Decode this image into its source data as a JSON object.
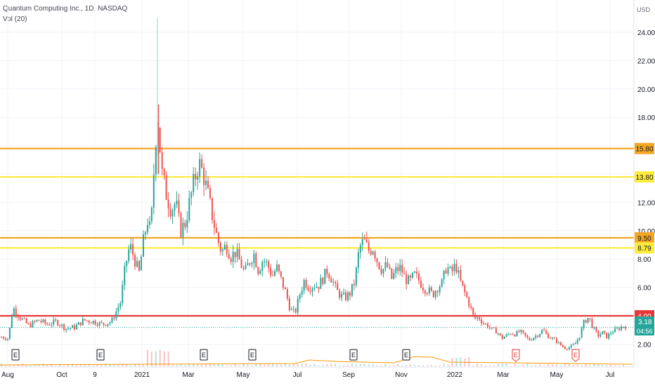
{
  "header": {
    "symbol_title": "Quantum Computing Inc., 1D, NASDAQ",
    "volume_indicator": "Vol (20)"
  },
  "axis": {
    "currency": "USD",
    "y_tick_labels": [
      "24.00",
      "22.00",
      "20.00",
      "18.00",
      "12.00",
      "10.00",
      "8.00",
      "6.00",
      "2.00"
    ],
    "x_tick_labels": [
      "Aug",
      "Oct",
      "9",
      "2021",
      "Mar",
      "May",
      "Jul",
      "Sep",
      "Nov",
      "2022",
      "Mar",
      "May",
      "Jul"
    ]
  },
  "price_tags": {
    "current_price": "3.18",
    "countdown": "04:56"
  },
  "colors": {
    "up": "#26a69a",
    "down": "#ef5350",
    "orange_line": "#f5a623",
    "yellow_line": "#ffeb3b",
    "red_line": "#e53935",
    "current_tag": "#26a69a"
  },
  "earnings_markers": {
    "label": "E",
    "past": [
      "Aug",
      "Nov",
      "Mar",
      "May",
      "Jul",
      "Nov"
    ],
    "upcoming": [
      "Mar",
      "May"
    ]
  },
  "chart_data": {
    "type": "candlestick",
    "title": "Quantum Computing Inc., 1D, NASDAQ",
    "ylabel": "USD",
    "ylim": [
      1,
      25.5
    ],
    "x_axis_labels": [
      "Aug",
      "Oct",
      "9",
      "2021",
      "Mar",
      "May",
      "Jul",
      "Sep",
      "Nov",
      "2022",
      "Mar",
      "May",
      "Jul"
    ],
    "horizontal_levels": [
      {
        "value": 15.8,
        "label": "15.80",
        "color": "orange"
      },
      {
        "value": 13.8,
        "label": "13.80",
        "color": "yellow"
      },
      {
        "value": 9.5,
        "label": "9.50",
        "color": "orange"
      },
      {
        "value": 8.79,
        "label": "8.79",
        "color": "yellow"
      },
      {
        "value": 4.0,
        "label": "4.00",
        "color": "red"
      }
    ],
    "last_price": 3.18,
    "series": [
      {
        "name": "Close",
        "approx_close_path": [
          [
            0,
            2.5
          ],
          [
            0.03,
            2.4
          ],
          [
            0.05,
            4.6
          ],
          [
            0.08,
            3.9
          ],
          [
            0.12,
            3.3
          ],
          [
            0.16,
            3.7
          ],
          [
            0.2,
            3.4
          ],
          [
            0.24,
            3.6
          ],
          [
            0.28,
            3.1
          ],
          [
            0.32,
            3.2
          ],
          [
            0.36,
            3.7
          ],
          [
            0.4,
            3.6
          ],
          [
            0.44,
            3.4
          ],
          [
            0.48,
            3.6
          ],
          [
            0.52,
            5.0
          ],
          [
            0.54,
            7.5
          ],
          [
            0.56,
            9.0
          ],
          [
            0.58,
            8.0
          ],
          [
            0.6,
            7.0
          ],
          [
            0.62,
            9.4
          ],
          [
            0.64,
            11.0
          ],
          [
            0.65,
            9.6
          ],
          [
            0.67,
            16.0
          ],
          [
            0.68,
            18.3
          ],
          [
            0.7,
            14.0
          ],
          [
            0.72,
            12.5
          ],
          [
            0.74,
            11.5
          ],
          [
            0.76,
            12.0
          ],
          [
            0.78,
            10.0
          ],
          [
            0.8,
            10.5
          ],
          [
            0.82,
            12.0
          ],
          [
            0.84,
            13.5
          ],
          [
            0.86,
            14.8
          ],
          [
            0.88,
            14.0
          ],
          [
            0.9,
            12.5
          ],
          [
            0.92,
            11.0
          ],
          [
            0.94,
            9.5
          ],
          [
            0.96,
            8.5
          ],
          [
            0.98,
            9.0
          ],
          [
            1.0,
            8.2
          ],
          [
            1.02,
            8.5
          ],
          [
            1.04,
            7.8
          ],
          [
            1.06,
            7.0
          ],
          [
            1.08,
            7.8
          ],
          [
            1.1,
            8.4
          ],
          [
            1.12,
            7.2
          ],
          [
            1.14,
            8.0
          ],
          [
            1.16,
            7.6
          ],
          [
            1.18,
            6.8
          ],
          [
            1.2,
            7.4
          ],
          [
            1.22,
            6.5
          ],
          [
            1.24,
            5.6
          ],
          [
            1.26,
            4.4
          ],
          [
            1.28,
            4.2
          ],
          [
            1.3,
            5.5
          ],
          [
            1.32,
            6.5
          ],
          [
            1.34,
            6.0
          ],
          [
            1.36,
            6.2
          ],
          [
            1.38,
            6.1
          ],
          [
            1.4,
            6.6
          ],
          [
            1.42,
            7.2
          ],
          [
            1.44,
            6.6
          ],
          [
            1.46,
            5.8
          ],
          [
            1.48,
            5.4
          ],
          [
            1.5,
            5.3
          ],
          [
            1.52,
            5.6
          ],
          [
            1.54,
            6.4
          ],
          [
            1.56,
            8.8
          ],
          [
            1.58,
            9.3
          ],
          [
            1.6,
            8.6
          ],
          [
            1.62,
            8.8
          ],
          [
            1.64,
            7.8
          ],
          [
            1.66,
            7.2
          ],
          [
            1.68,
            7.6
          ],
          [
            1.7,
            6.6
          ],
          [
            1.72,
            7.2
          ],
          [
            1.74,
            7.4
          ],
          [
            1.76,
            6.6
          ],
          [
            1.78,
            6.4
          ],
          [
            1.8,
            6.9
          ],
          [
            1.82,
            6.5
          ],
          [
            1.84,
            6.0
          ],
          [
            1.86,
            5.8
          ],
          [
            1.88,
            5.5
          ],
          [
            1.9,
            6.0
          ],
          [
            1.92,
            6.3
          ],
          [
            1.94,
            7.5
          ],
          [
            1.96,
            7.0
          ],
          [
            1.98,
            7.6
          ],
          [
            2.0,
            6.4
          ],
          [
            2.02,
            5.6
          ],
          [
            2.04,
            4.8
          ],
          [
            2.06,
            3.8
          ],
          [
            2.08,
            3.9
          ],
          [
            2.1,
            3.5
          ],
          [
            2.12,
            3.3
          ],
          [
            2.14,
            3.0
          ],
          [
            2.16,
            2.9
          ],
          [
            2.18,
            2.4
          ],
          [
            2.2,
            2.6
          ],
          [
            2.22,
            2.8
          ],
          [
            2.24,
            2.7
          ],
          [
            2.26,
            2.9
          ],
          [
            2.28,
            2.6
          ],
          [
            2.3,
            2.3
          ],
          [
            2.32,
            2.5
          ],
          [
            2.34,
            2.7
          ],
          [
            2.36,
            3.0
          ],
          [
            2.38,
            2.6
          ],
          [
            2.4,
            2.4
          ],
          [
            2.42,
            2.2
          ],
          [
            2.44,
            1.9
          ],
          [
            2.46,
            1.7
          ],
          [
            2.48,
            1.8
          ],
          [
            2.5,
            2.0
          ],
          [
            2.52,
            2.6
          ],
          [
            2.54,
            3.6
          ],
          [
            2.56,
            3.9
          ],
          [
            2.58,
            3.1
          ],
          [
            2.6,
            2.6
          ],
          [
            2.62,
            2.8
          ],
          [
            2.64,
            2.5
          ],
          [
            2.66,
            2.9
          ],
          [
            2.68,
            3.0
          ],
          [
            2.7,
            3.2
          ],
          [
            2.72,
            3.3
          ]
        ]
      }
    ],
    "grid": true,
    "legend": "top-left"
  }
}
